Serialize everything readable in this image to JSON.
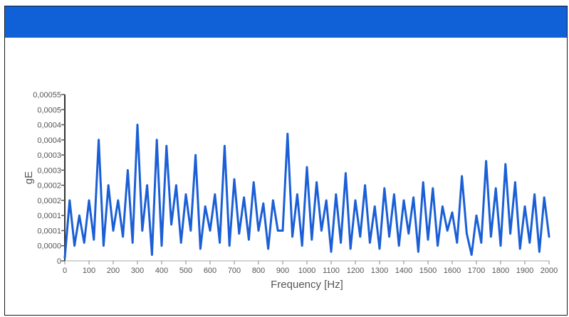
{
  "header": {
    "title": ""
  },
  "chart_data": {
    "type": "line",
    "xlabel": "Frequency [Hz]",
    "ylabel": "gE",
    "xlim": [
      0,
      2000
    ],
    "ylim": [
      0,
      0.00055
    ],
    "x_ticks": [
      "0",
      "100",
      "200",
      "300",
      "400",
      "500",
      "600",
      "700",
      "800",
      "900",
      "1000",
      "1100",
      "1200",
      "1300",
      "1400",
      "1500",
      "1600",
      "1700",
      "1800",
      "1900",
      "2000"
    ],
    "y_ticks": [
      "0",
      "0,0000",
      "0,0001",
      "0,0001",
      "0,0002",
      "0,0002",
      "0,0003",
      "0,0003",
      "0,0004",
      "0,0004",
      "0,0005",
      "0,00055"
    ],
    "grid": false,
    "legend": "none",
    "line_color": "#1a5fd6",
    "series": [
      {
        "x": [
          0,
          20,
          40,
          60,
          80,
          100,
          120,
          140,
          160,
          180,
          200,
          220,
          240,
          260,
          280,
          300,
          320,
          340,
          360,
          380,
          400,
          420,
          440,
          460,
          480,
          500,
          520,
          540,
          560,
          580,
          600,
          620,
          640,
          660,
          680,
          700,
          720,
          740,
          760,
          780,
          800,
          820,
          840,
          860,
          880,
          900,
          920,
          940,
          960,
          980,
          1000,
          1020,
          1040,
          1060,
          1080,
          1100,
          1120,
          1140,
          1160,
          1180,
          1200,
          1220,
          1240,
          1260,
          1280,
          1300,
          1320,
          1340,
          1360,
          1380,
          1400,
          1420,
          1440,
          1460,
          1480,
          1500,
          1520,
          1540,
          1560,
          1580,
          1600,
          1620,
          1640,
          1660,
          1680,
          1700,
          1720,
          1740,
          1760,
          1780,
          1800,
          1820,
          1840,
          1860,
          1880,
          1900,
          1920,
          1940,
          1960,
          1980,
          2000
        ],
        "values": [
          1e-05,
          0.0002,
          5e-05,
          0.00015,
          6e-05,
          0.0002,
          7e-05,
          0.0004,
          5e-05,
          0.00025,
          0.0001,
          0.0002,
          8e-05,
          0.0003,
          6e-05,
          0.00045,
          0.0001,
          0.00025,
          2e-05,
          0.0004,
          5e-05,
          0.00038,
          0.00012,
          0.00025,
          6e-05,
          0.00022,
          0.0001,
          0.00035,
          4e-05,
          0.00018,
          0.0001,
          0.00022,
          6e-05,
          0.00038,
          5e-05,
          0.00027,
          9e-05,
          0.00021,
          7e-05,
          0.00026,
          0.0001,
          0.00019,
          4e-05,
          0.0002,
          0.0001,
          0.0001,
          0.00042,
          8e-05,
          0.00022,
          5e-05,
          0.00031,
          7e-05,
          0.00026,
          0.0001,
          0.0002,
          3e-05,
          0.00022,
          6e-05,
          0.00029,
          4e-05,
          0.0002,
          8e-05,
          0.00025,
          6e-05,
          0.00018,
          4e-05,
          0.00024,
          8e-05,
          0.00022,
          5e-05,
          0.0002,
          9e-05,
          0.00021,
          3e-05,
          0.00026,
          7e-05,
          0.00024,
          5e-05,
          0.00018,
          0.0001,
          0.00016,
          6e-05,
          0.00028,
          9e-05,
          2e-05,
          0.00015,
          6e-05,
          0.00033,
          8e-05,
          0.00024,
          5e-05,
          0.00032,
          9e-05,
          0.00026,
          4e-05,
          0.00018,
          6e-05,
          0.00022,
          3e-05,
          0.00021,
          8e-05
        ]
      }
    ]
  }
}
